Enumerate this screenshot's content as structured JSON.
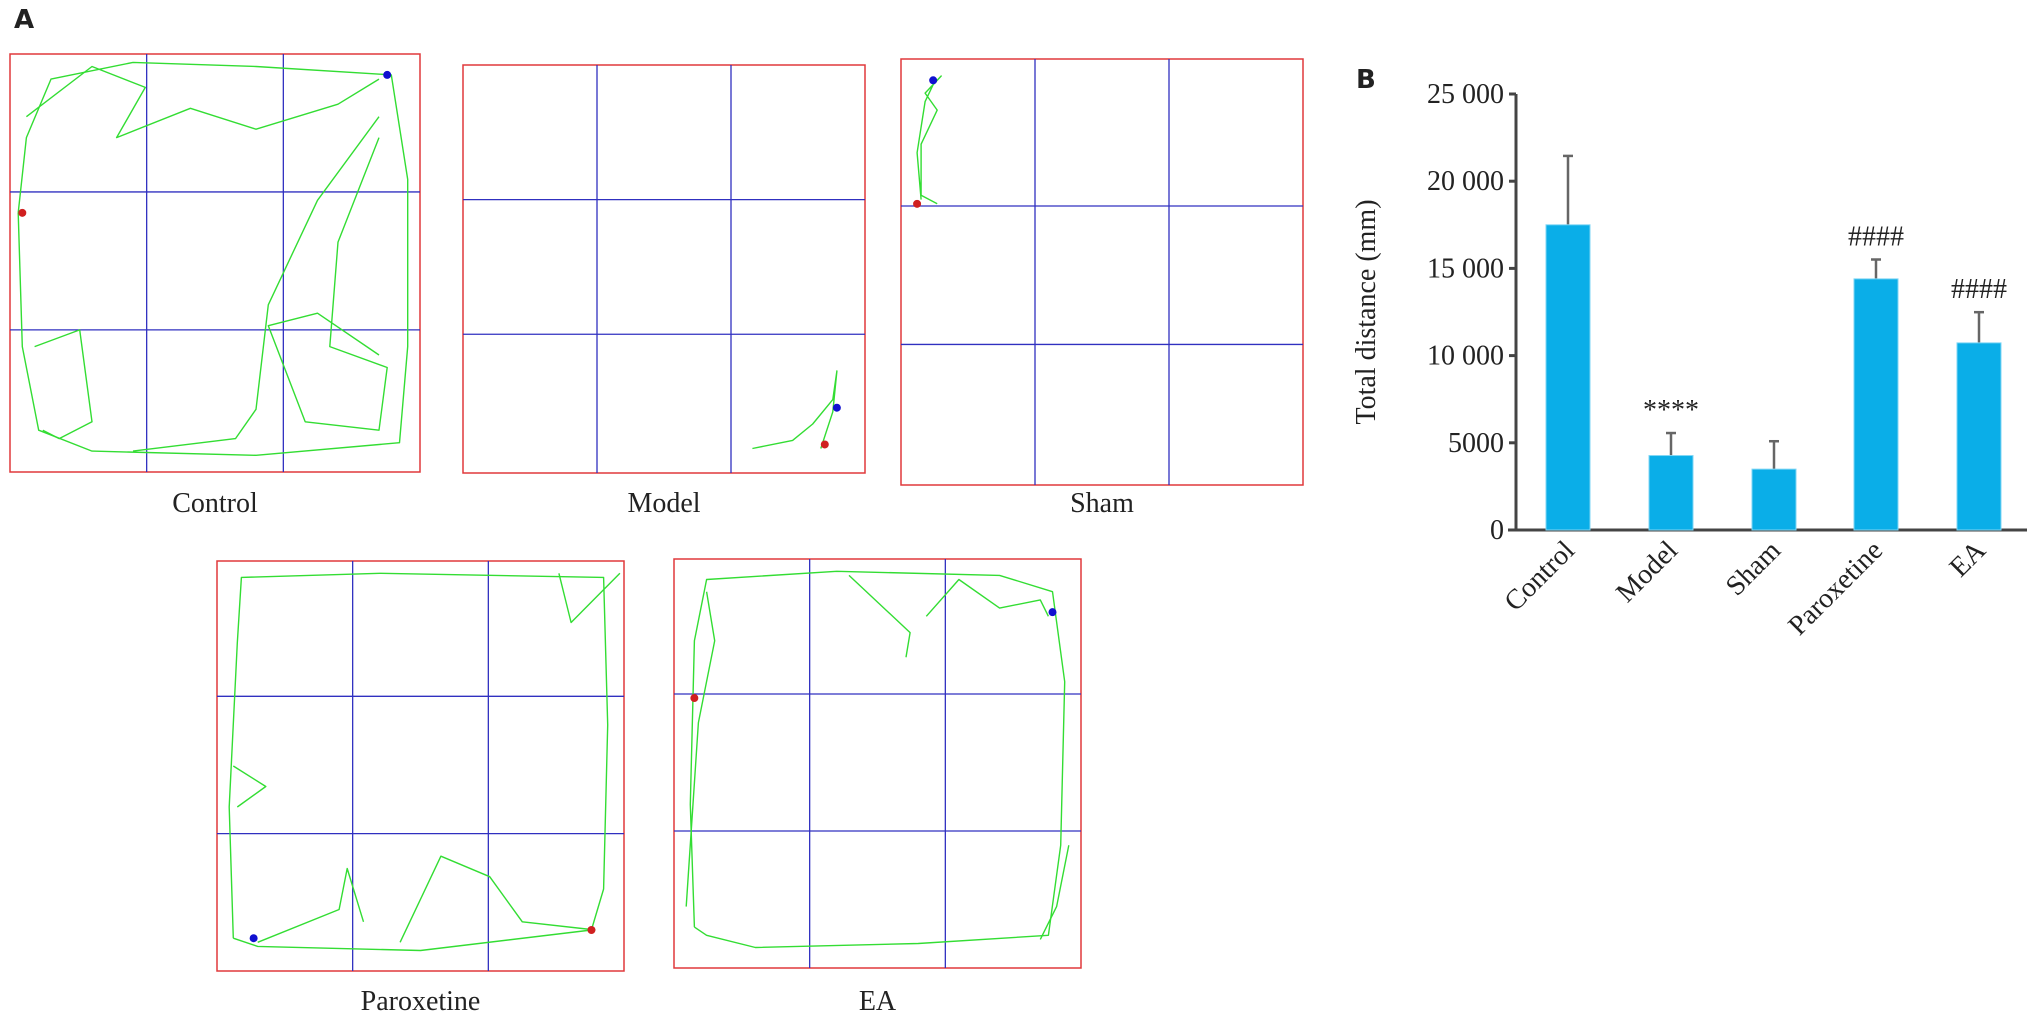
{
  "panel_a": {
    "label": "A",
    "arenas": [
      {
        "name": "Control"
      },
      {
        "name": "Model"
      },
      {
        "name": "Sham"
      },
      {
        "name": "Paroxetine"
      },
      {
        "name": "EA"
      }
    ],
    "colors": {
      "border": "#e0393b",
      "grid": "#3030c0",
      "track": "#33dd33",
      "start": "#d02020",
      "end": "#1010d0"
    }
  },
  "chart_data": {
    "type": "bar",
    "panel_label": "B",
    "title": "",
    "xlabel": "",
    "ylabel": "Total distance (mm)",
    "categories": [
      "Control",
      "Model",
      "Sham",
      "Paroxetine",
      "EA"
    ],
    "values": [
      17500,
      4270,
      3490,
      14400,
      10730
    ],
    "error_upper": [
      21450,
      5560,
      5090,
      15510,
      12490
    ],
    "annotations": [
      "",
      "****",
      "",
      "####",
      "####"
    ],
    "ylim": [
      0,
      25000
    ],
    "yticks": [
      0,
      5000,
      10000,
      15000,
      20000,
      25000
    ],
    "ytick_labels": [
      "0",
      "5000",
      "10 000",
      "15 000",
      "20 000",
      "25 000"
    ],
    "bar_color": "#0aaee8",
    "grid": false,
    "legend": "none"
  }
}
